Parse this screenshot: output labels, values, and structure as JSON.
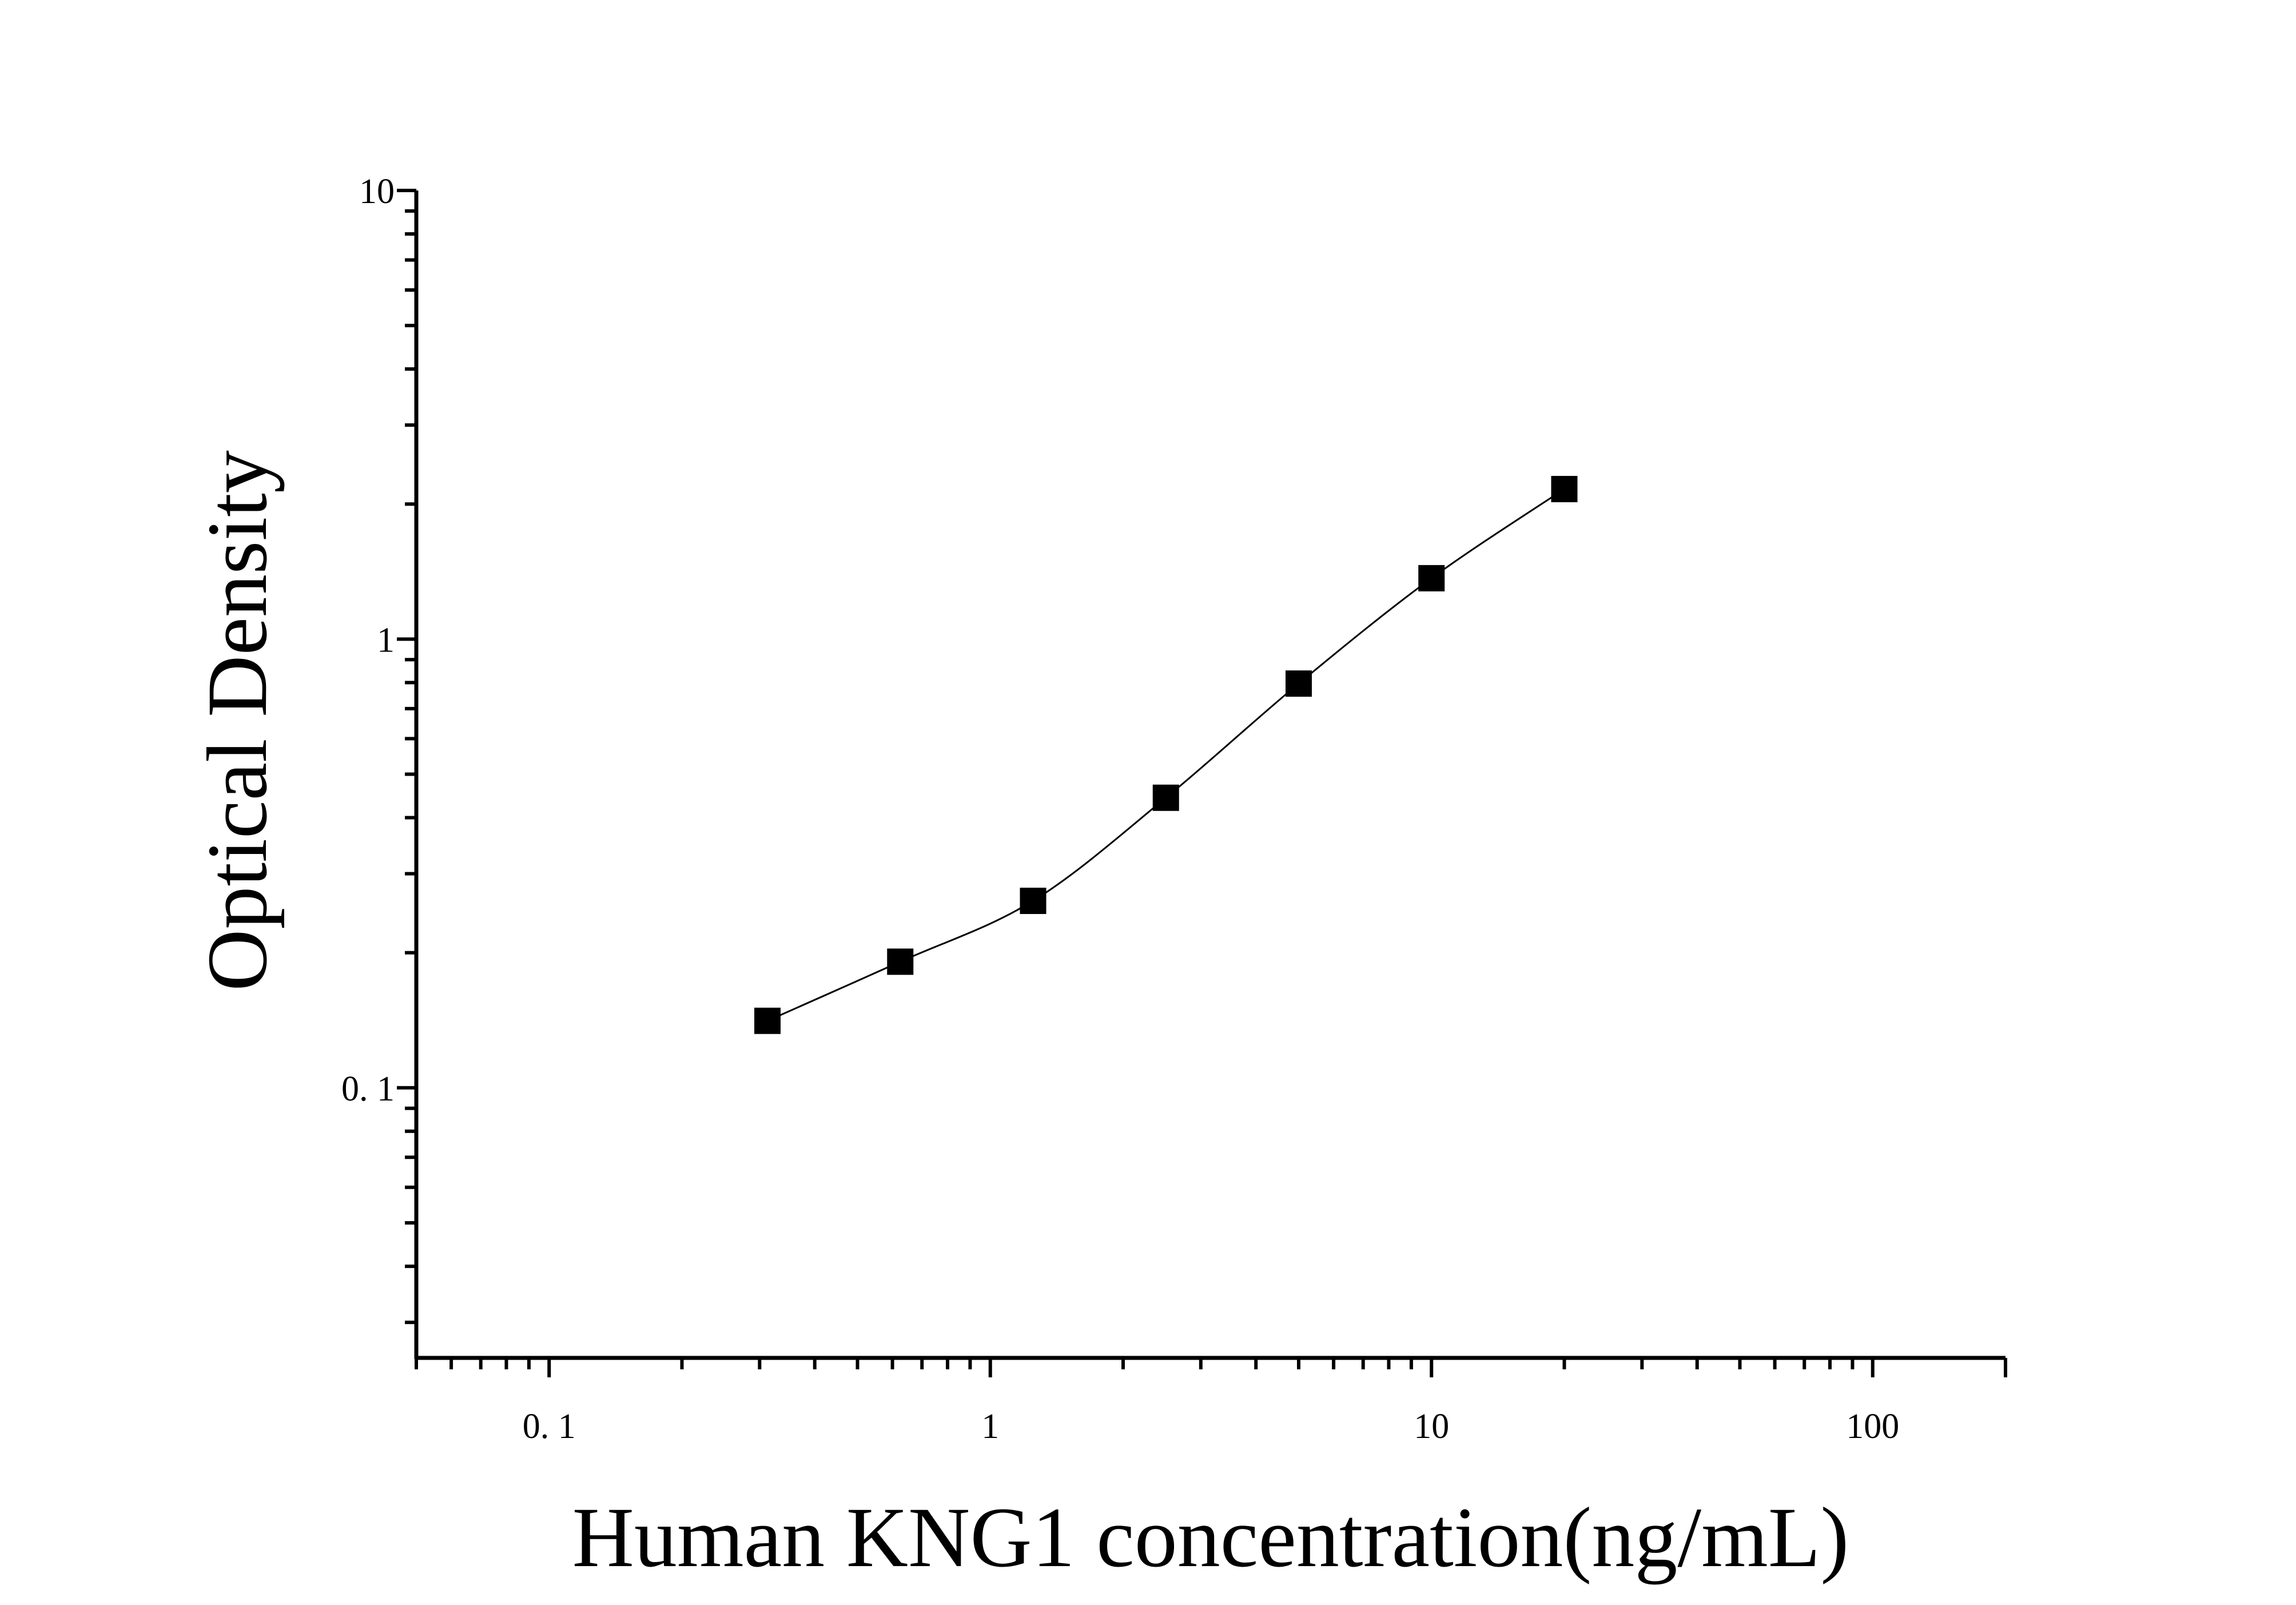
{
  "chart_data": {
    "type": "scatter",
    "title": "",
    "xlabel": "Human KNG1 concentration(ng/mL)",
    "ylabel": "Optical Density",
    "x_scale": "log",
    "y_scale": "log",
    "xlim": [
      0.05,
      200
    ],
    "ylim": [
      0.025,
      10
    ],
    "x_ticks": [
      {
        "value": 0.1,
        "label": "0. 1"
      },
      {
        "value": 1,
        "label": "1"
      },
      {
        "value": 10,
        "label": "10"
      },
      {
        "value": 100,
        "label": "100"
      }
    ],
    "y_ticks": [
      {
        "value": 0.1,
        "label": "0. 1"
      },
      {
        "value": 1,
        "label": "1"
      },
      {
        "value": 10,
        "label": "10"
      }
    ],
    "grid": false,
    "marker": "square",
    "fit_line": "smooth curve",
    "colors": {
      "marker": "#000000",
      "line": "#000000"
    },
    "series": [
      {
        "x": [
          0.3125,
          0.625,
          1.25,
          2.5,
          5,
          10,
          20
        ],
        "y": [
          0.141,
          0.191,
          0.261,
          0.443,
          0.796,
          1.367,
          2.16
        ]
      }
    ]
  }
}
